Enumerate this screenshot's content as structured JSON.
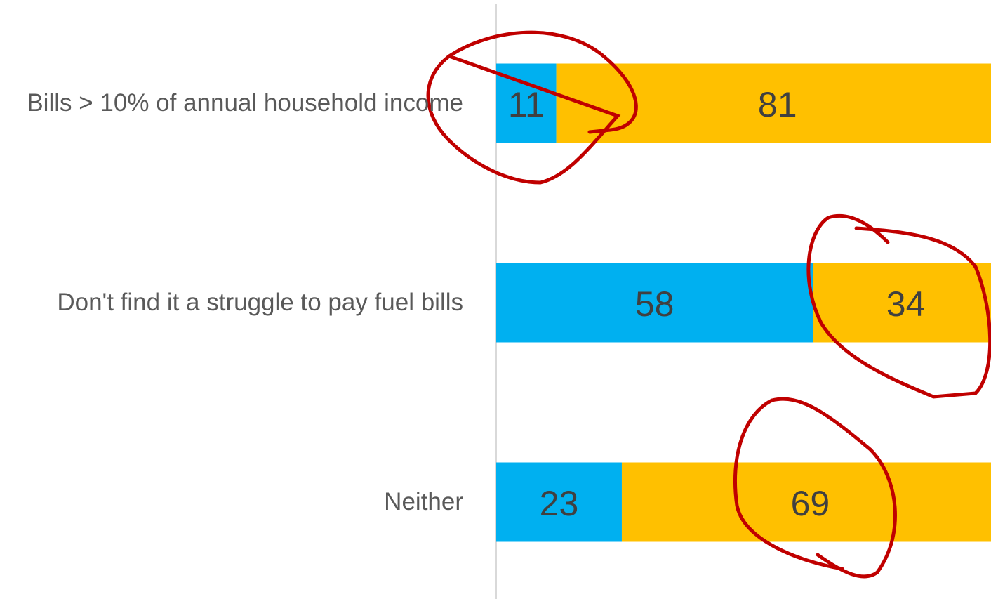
{
  "chart_data": {
    "type": "stacked_bar_horizontal",
    "categories": [
      "Bills > 10% of annual household income",
      "Don't find it a struggle to pay fuel bills",
      "Neither"
    ],
    "series": [
      {
        "color": "#00b0f0",
        "values": [
          11,
          58,
          23
        ]
      },
      {
        "color": "#ffc000",
        "values": [
          81,
          34,
          69
        ]
      }
    ],
    "xlim": [
      0,
      90.6
    ]
  }
}
